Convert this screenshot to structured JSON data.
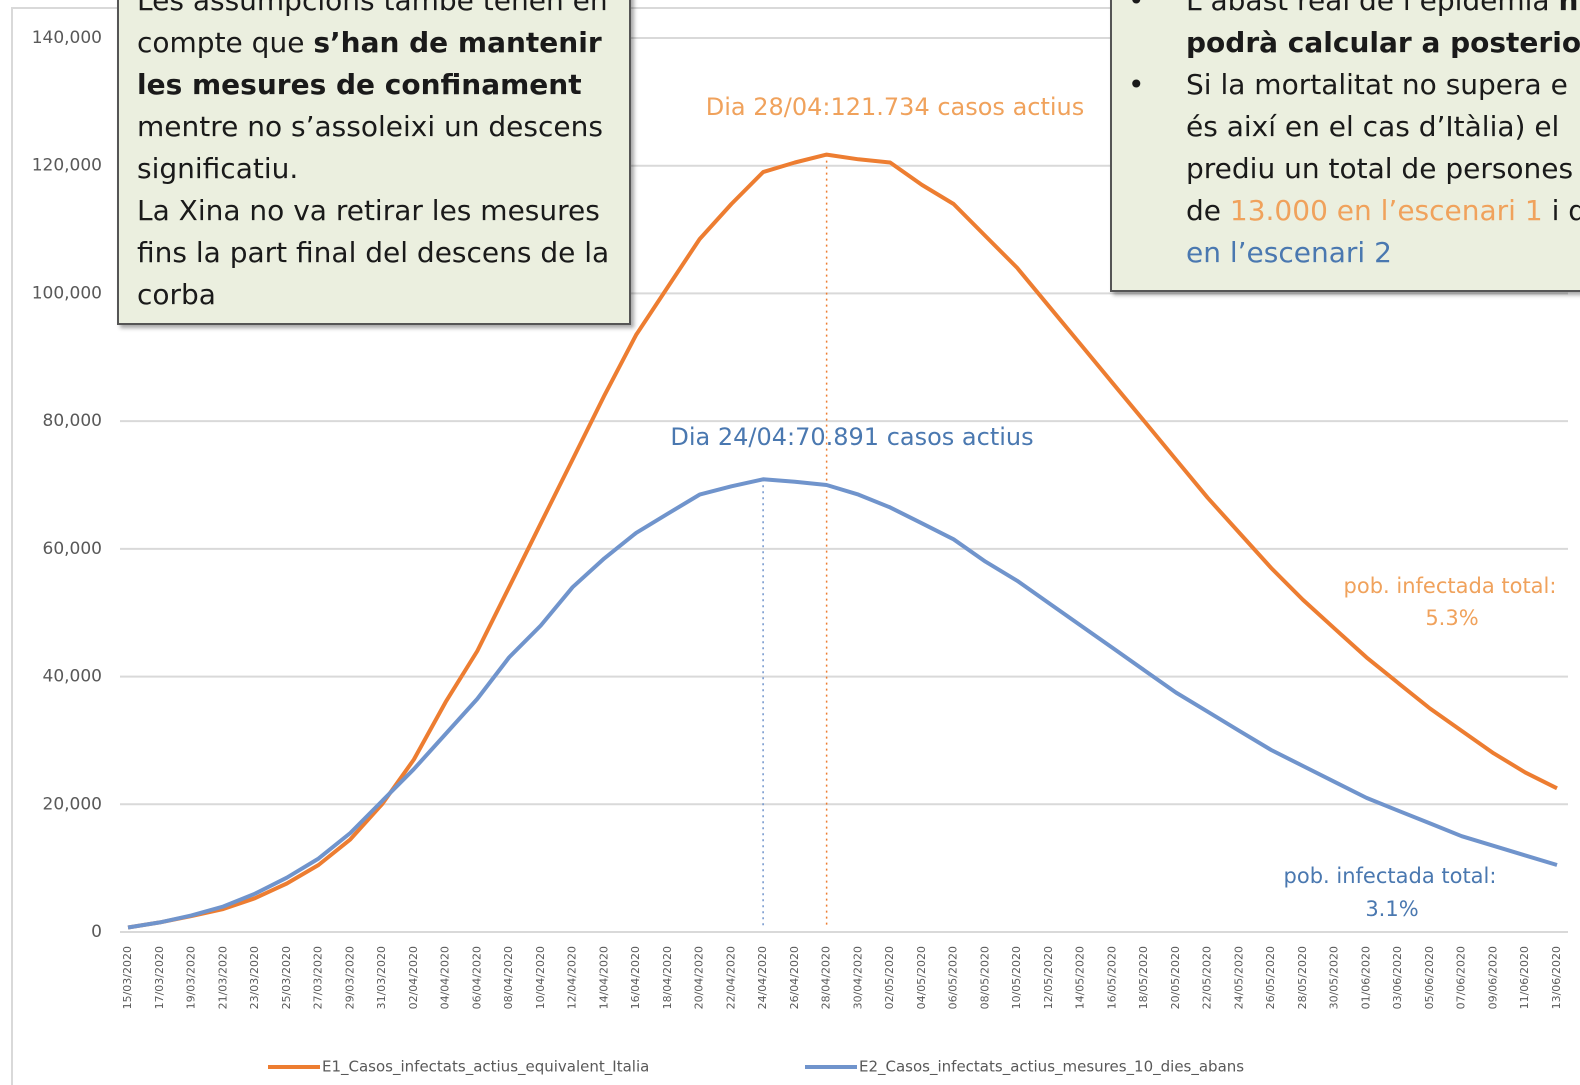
{
  "chart_data": {
    "type": "line",
    "x": [
      "15/03/2020",
      "17/03/2020",
      "19/03/2020",
      "21/03/2020",
      "23/03/2020",
      "25/03/2020",
      "27/03/2020",
      "29/03/2020",
      "31/03/2020",
      "02/04/2020",
      "04/04/2020",
      "06/04/2020",
      "08/04/2020",
      "10/04/2020",
      "12/04/2020",
      "14/04/2020",
      "16/04/2020",
      "18/04/2020",
      "20/04/2020",
      "22/04/2020",
      "24/04/2020",
      "26/04/2020",
      "28/04/2020",
      "30/04/2020",
      "02/05/2020",
      "04/05/2020",
      "06/05/2020",
      "08/05/2020",
      "10/05/2020",
      "12/05/2020",
      "14/05/2020",
      "16/05/2020",
      "18/05/2020",
      "20/05/2020",
      "22/05/2020",
      "24/05/2020",
      "26/05/2020",
      "28/05/2020",
      "30/05/2020",
      "01/06/2020",
      "03/06/2020",
      "05/06/2020",
      "07/06/2020",
      "09/06/2020",
      "11/06/2020",
      "13/06/2020"
    ],
    "series": [
      {
        "name": "E1_Casos_infectats_actius_equivalent_Italia",
        "color": "#ed7d31",
        "values": [
          700,
          1500,
          2500,
          3600,
          5300,
          7600,
          10500,
          14500,
          20000,
          27000,
          36000,
          44000,
          54000,
          64000,
          74000,
          84000,
          93500,
          101000,
          108500,
          114000,
          119000,
          120500,
          121734,
          121000,
          120500,
          117000,
          114000,
          109000,
          104000,
          98000,
          92000,
          86000,
          80000,
          74000,
          68000,
          62500,
          57000,
          52000,
          47500,
          43000,
          39000,
          35000,
          31500,
          28000,
          25000,
          22500
        ]
      },
      {
        "name": "E2_Casos_infectats_actius_mesures_10_dies_abans",
        "color": "#7094cc",
        "values": [
          700,
          1500,
          2600,
          4000,
          6000,
          8500,
          11500,
          15500,
          20500,
          25500,
          31000,
          36500,
          43000,
          48000,
          54000,
          58500,
          62500,
          65500,
          68500,
          69800,
          70891,
          70500,
          70000,
          68500,
          66500,
          64000,
          61500,
          58000,
          55000,
          51500,
          48000,
          44500,
          41000,
          37500,
          34500,
          31500,
          28500,
          26000,
          23500,
          21000,
          19000,
          17000,
          15000,
          13500,
          12000,
          10500
        ]
      }
    ],
    "ylim": [
      0,
      140000
    ],
    "yticks": [
      0,
      {
        "value": 20000,
        "label": "20,000"
      },
      {
        "value": 40000,
        "label": "40,000"
      },
      {
        "value": 60000,
        "label": "60,000"
      },
      {
        "value": 80000,
        "label": "80,000"
      },
      {
        "value": 100000,
        "label": "100,000"
      },
      {
        "value": 120000,
        "label": "120,000"
      },
      {
        "value": 140000,
        "label": "140,000"
      }
    ],
    "grid": true,
    "legend": "bottom",
    "annotations": {
      "peak_e1": "Dia 28/04:121.734 casos actius",
      "peak_e2": "Dia 24/04:70.891 casos actius",
      "total_e1": [
        "pob. infectada total:",
        "5.3%"
      ],
      "total_e2": [
        "pob. infectada total:",
        "3.1%"
      ]
    }
  },
  "left_box": {
    "lines": [
      [
        {
          "text": "Les assumpcions també tenen en"
        }
      ],
      [
        {
          "text": "compte que "
        },
        {
          "text": "s’han de mantenir",
          "style": "bold"
        }
      ],
      [
        {
          "text": "les mesures de confinament",
          "style": "bold"
        }
      ],
      [
        {
          "text": "mentre no s’assoleixi un descens"
        }
      ],
      [
        {
          "text": "significatiu."
        }
      ],
      [
        {
          "text": "La Xina no va retirar les mesures"
        }
      ],
      [
        {
          "text": "fins la part final del descens de la"
        }
      ],
      [
        {
          "text": "corba"
        }
      ]
    ]
  },
  "right_box": {
    "lines": [
      [
        {
          "text": "•"
        },
        {
          "text": "L’abast real de l’epidèmia "
        },
        {
          "text": "n",
          "style": "bold"
        }
      ],
      [
        {
          "text": "podrà calcular a posteriori",
          "style": "bold"
        }
      ],
      [
        {
          "text": "•"
        },
        {
          "text": "Si la mortalitat no supera e"
        }
      ],
      [
        {
          "text": "és així en el cas d’Itàlia)  el"
        }
      ],
      [
        {
          "text": "prediu un total de persones"
        }
      ],
      [
        {
          "text": "de "
        },
        {
          "text": "13.000 en l’escenari 1",
          "style": "orange"
        },
        {
          "text": " i d"
        }
      ],
      [
        {
          "text": "en l’escenari 2",
          "style": "blue"
        }
      ]
    ]
  }
}
